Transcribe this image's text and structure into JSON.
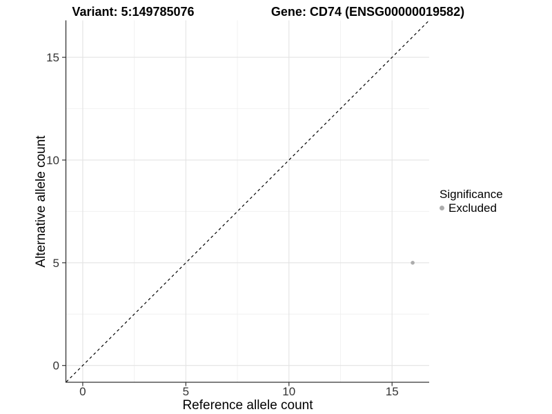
{
  "chart_data": {
    "type": "scatter",
    "title_variant": "Variant: 5:149785076",
    "title_gene": "Gene: CD74 (ENSG00000019582)",
    "xlabel": "Reference allele count",
    "ylabel": "Alternative allele count",
    "xlim": [
      -0.8,
      16.8
    ],
    "ylim": [
      -0.8,
      16.8
    ],
    "x_ticks": [
      0,
      5,
      10,
      15
    ],
    "y_ticks": [
      0,
      5,
      10,
      15
    ],
    "x_minor_ticks": [
      2.5,
      7.5,
      12.5
    ],
    "y_minor_ticks": [
      2.5,
      7.5,
      12.5
    ],
    "grid": "major and minor, light gray on white",
    "series": [
      {
        "name": "Excluded",
        "color": "#acacac",
        "points": [
          [
            16,
            5
          ]
        ]
      }
    ],
    "reference_line": {
      "kind": "identity y=x",
      "style": "dashed",
      "color": "#000000",
      "from": [
        -0.8,
        -0.8
      ],
      "to": [
        16.8,
        16.8
      ]
    },
    "legend": {
      "title": "Significance",
      "position": "right",
      "entries": [
        {
          "label": "Excluded",
          "color": "#acacac",
          "marker": "point"
        }
      ]
    },
    "colors": {
      "axis_line": "#333333",
      "tick_label": "#333333",
      "grid_major": "#e3e3e3",
      "grid_minor": "#f0f0f0",
      "background": "#ffffff"
    }
  }
}
